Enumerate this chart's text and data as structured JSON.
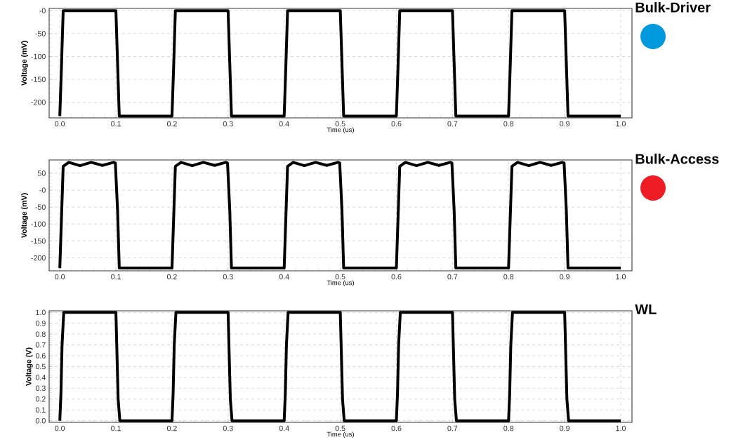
{
  "chart_data": [
    {
      "type": "line",
      "title": "Bulk-Driver",
      "xlabel": "Time (us)",
      "ylabel": "Voltage (mV)",
      "xlim": [
        -0.019,
        1.02
      ],
      "ylim": [
        -234,
        5
      ],
      "xticks": [
        {
          "value": 0,
          "label": "0.0"
        },
        {
          "value": 0.1,
          "label": "0.1"
        },
        {
          "value": 0.2,
          "label": "0.2"
        },
        {
          "value": 0.3,
          "label": "0.3"
        },
        {
          "value": 0.4,
          "label": "0.4"
        },
        {
          "value": 0.5,
          "label": "0.5"
        },
        {
          "value": 0.6,
          "label": "0.6"
        },
        {
          "value": 0.7,
          "label": "0.7"
        },
        {
          "value": 0.8,
          "label": "0.8"
        },
        {
          "value": 0.9,
          "label": "0.9"
        },
        {
          "value": 1,
          "label": "1.0"
        }
      ],
      "yticks": [
        {
          "value": 0,
          "label": "-0"
        },
        -50,
        -100,
        -150,
        -200
      ],
      "grid": true,
      "line_style": "solid",
      "series": [
        {
          "color": "#000000",
          "x": [
            0,
            0.003,
            0.006,
            0.1,
            0.103,
            0.106,
            0.2,
            0.203,
            0.206,
            0.3,
            0.303,
            0.306,
            0.4,
            0.403,
            0.406,
            0.5,
            0.503,
            0.506,
            0.6,
            0.603,
            0.606,
            0.7,
            0.703,
            0.706,
            0.8,
            0.803,
            0.806,
            0.9,
            0.903,
            0.906,
            1.0
          ],
          "values": [
            -230,
            -120,
            0,
            0,
            -115,
            -230,
            -230,
            -120,
            0,
            0,
            -115,
            -230,
            -230,
            -120,
            0,
            0,
            -115,
            -230,
            -230,
            -120,
            0,
            0,
            -115,
            -230,
            -230,
            -120,
            0,
            0,
            -115,
            -230,
            -230
          ]
        }
      ]
    },
    {
      "type": "line",
      "title": "Bulk-Access",
      "xlabel": "Time (us)",
      "ylabel": "Voltage (mV)",
      "xlim": [
        -0.019,
        1.02
      ],
      "ylim": [
        -238,
        89
      ],
      "xticks": [
        {
          "value": 0,
          "label": "0.0"
        },
        {
          "value": 0.1,
          "label": "0.1"
        },
        {
          "value": 0.2,
          "label": "0.2"
        },
        {
          "value": 0.3,
          "label": "0.3"
        },
        {
          "value": 0.4,
          "label": "0.4"
        },
        {
          "value": 0.5,
          "label": "0.5"
        },
        {
          "value": 0.6,
          "label": "0.6"
        },
        {
          "value": 0.7,
          "label": "0.7"
        },
        {
          "value": 0.8,
          "label": "0.8"
        },
        {
          "value": 0.9,
          "label": "0.9"
        },
        {
          "value": 1,
          "label": "1.0"
        }
      ],
      "yticks": [
        50,
        {
          "value": 0,
          "label": "-0"
        },
        -50,
        -100,
        -150,
        -200
      ],
      "grid": true,
      "line_style": "solid",
      "series": [
        {
          "color": "#000000",
          "x": [
            0,
            0.003,
            0.006,
            0.016,
            0.036,
            0.056,
            0.076,
            0.096,
            0.099,
            0.103,
            0.106,
            0.2,
            0.203,
            0.206,
            0.216,
            0.236,
            0.256,
            0.276,
            0.296,
            0.299,
            0.303,
            0.306,
            0.4,
            0.403,
            0.406,
            0.416,
            0.436,
            0.456,
            0.476,
            0.496,
            0.499,
            0.503,
            0.506,
            0.6,
            0.603,
            0.606,
            0.616,
            0.636,
            0.656,
            0.676,
            0.696,
            0.699,
            0.703,
            0.706,
            0.8,
            0.803,
            0.806,
            0.816,
            0.836,
            0.856,
            0.876,
            0.896,
            0.899,
            0.903,
            0.906,
            1.0
          ],
          "values": [
            -230,
            -80,
            70,
            82,
            72,
            82,
            73,
            82,
            80,
            -60,
            -230,
            -230,
            -80,
            70,
            82,
            72,
            82,
            73,
            82,
            80,
            -60,
            -230,
            -230,
            -80,
            70,
            82,
            72,
            82,
            73,
            82,
            80,
            -60,
            -230,
            -230,
            -80,
            70,
            82,
            72,
            82,
            73,
            82,
            80,
            -60,
            -230,
            -230,
            -80,
            70,
            82,
            72,
            82,
            73,
            82,
            80,
            -60,
            -230,
            -230
          ]
        }
      ]
    },
    {
      "type": "line",
      "title": "WL",
      "xlabel": "Time (us)",
      "ylabel": "Voltage (V)",
      "xlim": [
        -0.019,
        1.02
      ],
      "ylim": [
        -0.015,
        1.015
      ],
      "xticks": [
        {
          "value": 0,
          "label": "0.0"
        },
        {
          "value": 0.1,
          "label": "0.1"
        },
        {
          "value": 0.2,
          "label": "0.2"
        },
        {
          "value": 0.3,
          "label": "0.3"
        },
        {
          "value": 0.4,
          "label": "0.4"
        },
        {
          "value": 0.5,
          "label": "0.5"
        },
        {
          "value": 0.6,
          "label": "0.6"
        },
        {
          "value": 0.7,
          "label": "0.7"
        },
        {
          "value": 0.8,
          "label": "0.8"
        },
        {
          "value": 0.9,
          "label": "0.9"
        },
        {
          "value": 1,
          "label": "1.0"
        }
      ],
      "yticks": [
        {
          "value": 0,
          "label": "0.0"
        },
        {
          "value": 0.1,
          "label": "0.1"
        },
        {
          "value": 0.2,
          "label": "0.2"
        },
        {
          "value": 0.3,
          "label": "0.3"
        },
        {
          "value": 0.4,
          "label": "0.4"
        },
        {
          "value": 0.5,
          "label": "0.5"
        },
        {
          "value": 0.6,
          "label": "0.6"
        },
        {
          "value": 0.7,
          "label": "0.7"
        },
        {
          "value": 0.8,
          "label": "0.8"
        },
        {
          "value": 0.9,
          "label": "0.9"
        },
        {
          "value": 1,
          "label": "1.0"
        }
      ],
      "grid": true,
      "line_style": "solid",
      "series": [
        {
          "color": "#000000",
          "x": [
            0,
            0.002,
            0.004,
            0.007,
            0.1,
            0.102,
            0.104,
            0.107,
            0.2,
            0.202,
            0.204,
            0.207,
            0.3,
            0.302,
            0.304,
            0.307,
            0.4,
            0.402,
            0.404,
            0.407,
            0.5,
            0.502,
            0.504,
            0.507,
            0.6,
            0.602,
            0.604,
            0.607,
            0.7,
            0.702,
            0.704,
            0.707,
            0.8,
            0.802,
            0.804,
            0.807,
            0.9,
            0.902,
            0.904,
            0.907,
            1.0
          ],
          "values": [
            0,
            0.25,
            0.7,
            1,
            1,
            0.6,
            0.2,
            0,
            0,
            0.25,
            0.7,
            1,
            1,
            0.6,
            0.2,
            0,
            0,
            0.25,
            0.7,
            1,
            1,
            0.6,
            0.2,
            0,
            0,
            0.25,
            0.7,
            1,
            1,
            0.6,
            0.2,
            0,
            0,
            0.25,
            0.7,
            1,
            1,
            0.6,
            0.2,
            0,
            0
          ]
        }
      ]
    }
  ]
}
